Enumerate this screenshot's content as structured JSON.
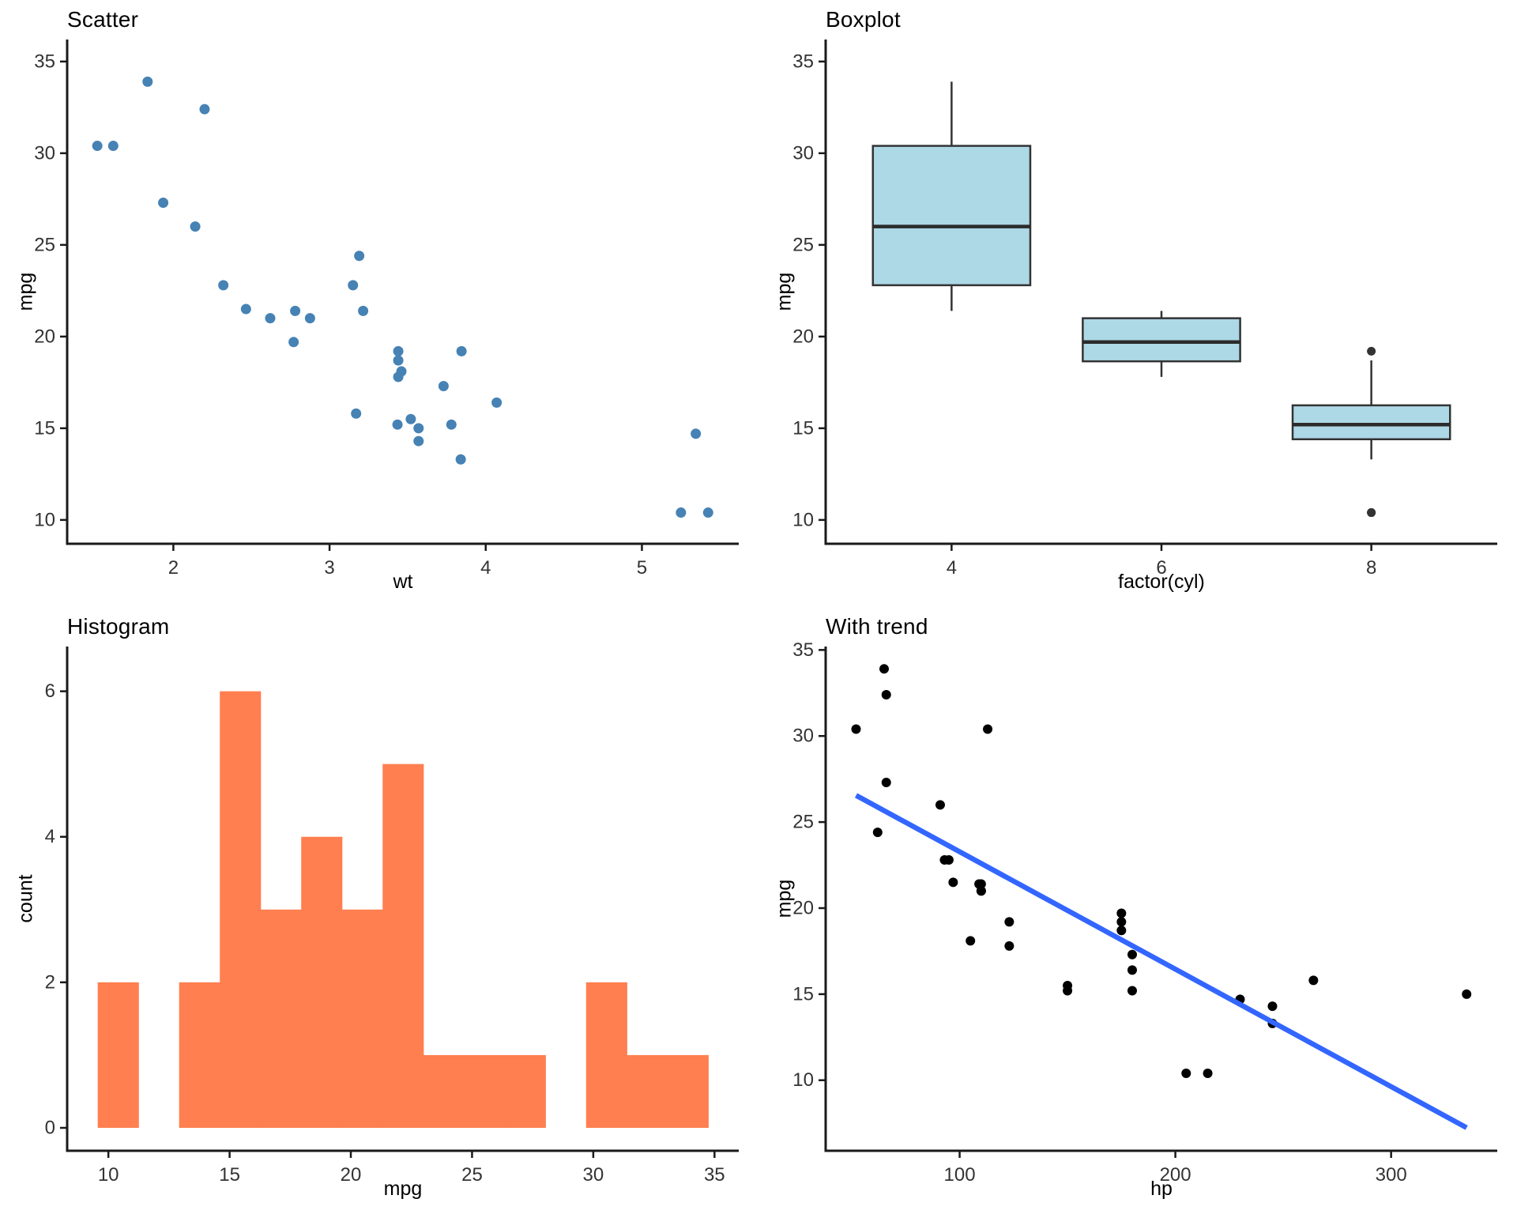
{
  "figure": {
    "background": "#FFFFFF"
  },
  "chart_data": [
    {
      "id": "scatter",
      "type": "scatter",
      "title": "Scatter",
      "xlabel": "wt",
      "ylabel": "mpg",
      "xlim": [
        1.32,
        5.62
      ],
      "ylim": [
        8.7,
        36.2
      ],
      "xticks": [
        2,
        3,
        4,
        5
      ],
      "yticks": [
        10,
        15,
        20,
        25,
        30,
        35
      ],
      "grid": "off",
      "point_color": "#4682B4",
      "point_radius": 6.5,
      "points": [
        [
          2.62,
          21.0
        ],
        [
          2.875,
          21.0
        ],
        [
          2.32,
          22.8
        ],
        [
          3.215,
          21.4
        ],
        [
          3.44,
          18.7
        ],
        [
          3.46,
          18.1
        ],
        [
          3.57,
          14.3
        ],
        [
          3.19,
          24.4
        ],
        [
          3.15,
          22.8
        ],
        [
          3.44,
          19.2
        ],
        [
          3.44,
          17.8
        ],
        [
          4.07,
          16.4
        ],
        [
          3.73,
          17.3
        ],
        [
          3.78,
          15.2
        ],
        [
          5.25,
          10.4
        ],
        [
          5.424,
          10.4
        ],
        [
          5.345,
          14.7
        ],
        [
          2.2,
          32.4
        ],
        [
          1.615,
          30.4
        ],
        [
          1.835,
          33.9
        ],
        [
          2.465,
          21.5
        ],
        [
          3.52,
          15.5
        ],
        [
          3.435,
          15.2
        ],
        [
          3.84,
          13.3
        ],
        [
          3.845,
          19.2
        ],
        [
          1.935,
          27.3
        ],
        [
          2.14,
          26.0
        ],
        [
          1.513,
          30.4
        ],
        [
          3.17,
          15.8
        ],
        [
          2.77,
          19.7
        ],
        [
          3.57,
          15.0
        ],
        [
          2.78,
          21.4
        ]
      ]
    },
    {
      "id": "boxplot",
      "type": "box",
      "title": "Boxplot",
      "xlabel": "factor(cyl)",
      "ylabel": "mpg",
      "categories": [
        "4",
        "6",
        "8"
      ],
      "xlim": [
        0.4,
        3.6
      ],
      "ylim": [
        8.7,
        36.2
      ],
      "yticks": [
        10,
        15,
        20,
        25,
        30,
        35
      ],
      "grid": "off",
      "box_fill": "#ADD8E6",
      "box_stroke": "#333333",
      "median_stroke": "#2B2B2B",
      "outlier_color": "#333333",
      "box_width": 0.75,
      "groups": [
        {
          "label": "4",
          "lower_whisker": 21.4,
          "q1": 22.8,
          "median": 26.0,
          "q3": 30.4,
          "upper_whisker": 33.9,
          "outliers": []
        },
        {
          "label": "6",
          "lower_whisker": 17.8,
          "q1": 18.65,
          "median": 19.7,
          "q3": 21.0,
          "upper_whisker": 21.4,
          "outliers": []
        },
        {
          "label": "8",
          "lower_whisker": 13.3,
          "q1": 14.4,
          "median": 15.2,
          "q3": 16.25,
          "upper_whisker": 18.7,
          "outliers": [
            10.4,
            10.4,
            19.2
          ]
        }
      ]
    },
    {
      "id": "histogram",
      "type": "histogram",
      "title": "Histogram",
      "xlabel": "mpg",
      "ylabel": "count",
      "xlim": [
        8.3,
        36.0
      ],
      "ylim": [
        -0.315,
        6.615
      ],
      "xticks": [
        10,
        15,
        20,
        25,
        30,
        35
      ],
      "yticks": [
        0,
        2,
        4,
        6
      ],
      "grid": "off",
      "bar_fill": "#FF7F50",
      "bin_start": 9.5607,
      "bin_width": 1.6786,
      "counts": [
        2,
        0,
        2,
        6,
        3,
        4,
        3,
        5,
        1,
        1,
        1,
        0,
        2,
        1,
        1
      ]
    },
    {
      "id": "trend",
      "type": "scatter_trend",
      "title": "With trend",
      "xlabel": "hp",
      "ylabel": "mpg",
      "xlim": [
        37.9,
        349.2
      ],
      "ylim": [
        5.9,
        35.2
      ],
      "xticks": [
        100,
        200,
        300
      ],
      "yticks": [
        10,
        15,
        20,
        25,
        30,
        35
      ],
      "grid": "off",
      "point_color": "#000000",
      "point_radius": 6,
      "trend": {
        "color": "#3366FF",
        "width": 6.5,
        "x1": 52,
        "y1": 26.55,
        "x2": 335,
        "y2": 7.24
      },
      "points": [
        [
          110,
          21.0
        ],
        [
          110,
          21.0
        ],
        [
          93,
          22.8
        ],
        [
          110,
          21.4
        ],
        [
          175,
          18.7
        ],
        [
          105,
          18.1
        ],
        [
          245,
          14.3
        ],
        [
          62,
          24.4
        ],
        [
          95,
          22.8
        ],
        [
          123,
          19.2
        ],
        [
          123,
          17.8
        ],
        [
          180,
          16.4
        ],
        [
          180,
          17.3
        ],
        [
          180,
          15.2
        ],
        [
          205,
          10.4
        ],
        [
          215,
          10.4
        ],
        [
          230,
          14.7
        ],
        [
          66,
          32.4
        ],
        [
          52,
          30.4
        ],
        [
          65,
          33.9
        ],
        [
          97,
          21.5
        ],
        [
          150,
          15.5
        ],
        [
          150,
          15.2
        ],
        [
          245,
          13.3
        ],
        [
          175,
          19.2
        ],
        [
          66,
          27.3
        ],
        [
          91,
          26.0
        ],
        [
          113,
          30.4
        ],
        [
          264,
          15.8
        ],
        [
          175,
          19.7
        ],
        [
          335,
          15.0
        ],
        [
          109,
          21.4
        ]
      ]
    }
  ]
}
